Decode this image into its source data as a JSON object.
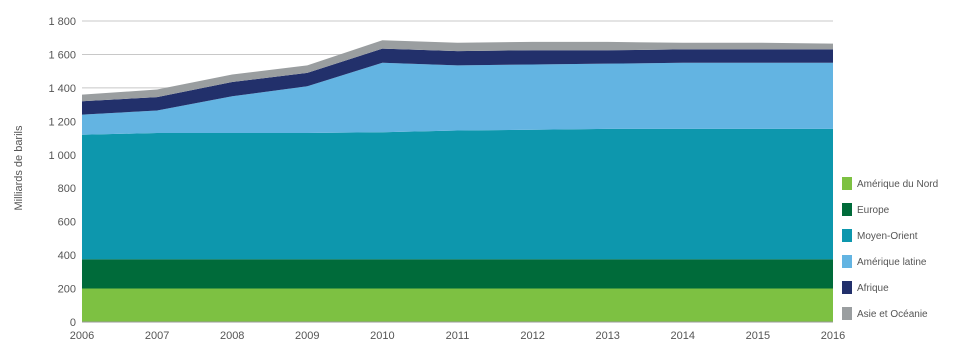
{
  "chart_data": {
    "type": "area",
    "stacked": true,
    "title": "",
    "xlabel": "",
    "ylabel": "Milliards de barils",
    "x": [
      "2006",
      "2007",
      "2008",
      "2009",
      "2010",
      "2011",
      "2012",
      "2013",
      "2014",
      "2015",
      "2016"
    ],
    "ylim": [
      0,
      1800
    ],
    "yticks": [
      0,
      200,
      400,
      600,
      800,
      1000,
      1200,
      1400,
      1600,
      1800
    ],
    "ytick_labels": [
      "0",
      "200",
      "400",
      "600",
      "800",
      "1 000",
      "1 200",
      "1 400",
      "1 600",
      "1 800"
    ],
    "grid": true,
    "legend_position": "right",
    "series": [
      {
        "name": "Amérique du Nord",
        "color": "#7dc142",
        "values": [
          200,
          200,
          200,
          200,
          200,
          200,
          200,
          200,
          200,
          200,
          200
        ]
      },
      {
        "name": "Europe",
        "color": "#006b3a",
        "values": [
          175,
          175,
          175,
          175,
          175,
          175,
          175,
          175,
          175,
          175,
          175
        ]
      },
      {
        "name": "Moyen-Orient",
        "color": "#0d97ad",
        "values": [
          745,
          755,
          755,
          755,
          760,
          770,
          775,
          780,
          780,
          780,
          780
        ]
      },
      {
        "name": "Amérique latine",
        "color": "#63b4e2",
        "values": [
          120,
          135,
          220,
          280,
          415,
          390,
          390,
          390,
          395,
          395,
          395
        ]
      },
      {
        "name": "Afrique",
        "color": "#22306b",
        "values": [
          80,
          80,
          85,
          80,
          85,
          85,
          85,
          80,
          80,
          80,
          80
        ]
      },
      {
        "name": "Asie et Océanie",
        "color": "#9a9ea0",
        "values": [
          40,
          45,
          45,
          45,
          50,
          50,
          50,
          50,
          40,
          40,
          35
        ]
      }
    ]
  }
}
